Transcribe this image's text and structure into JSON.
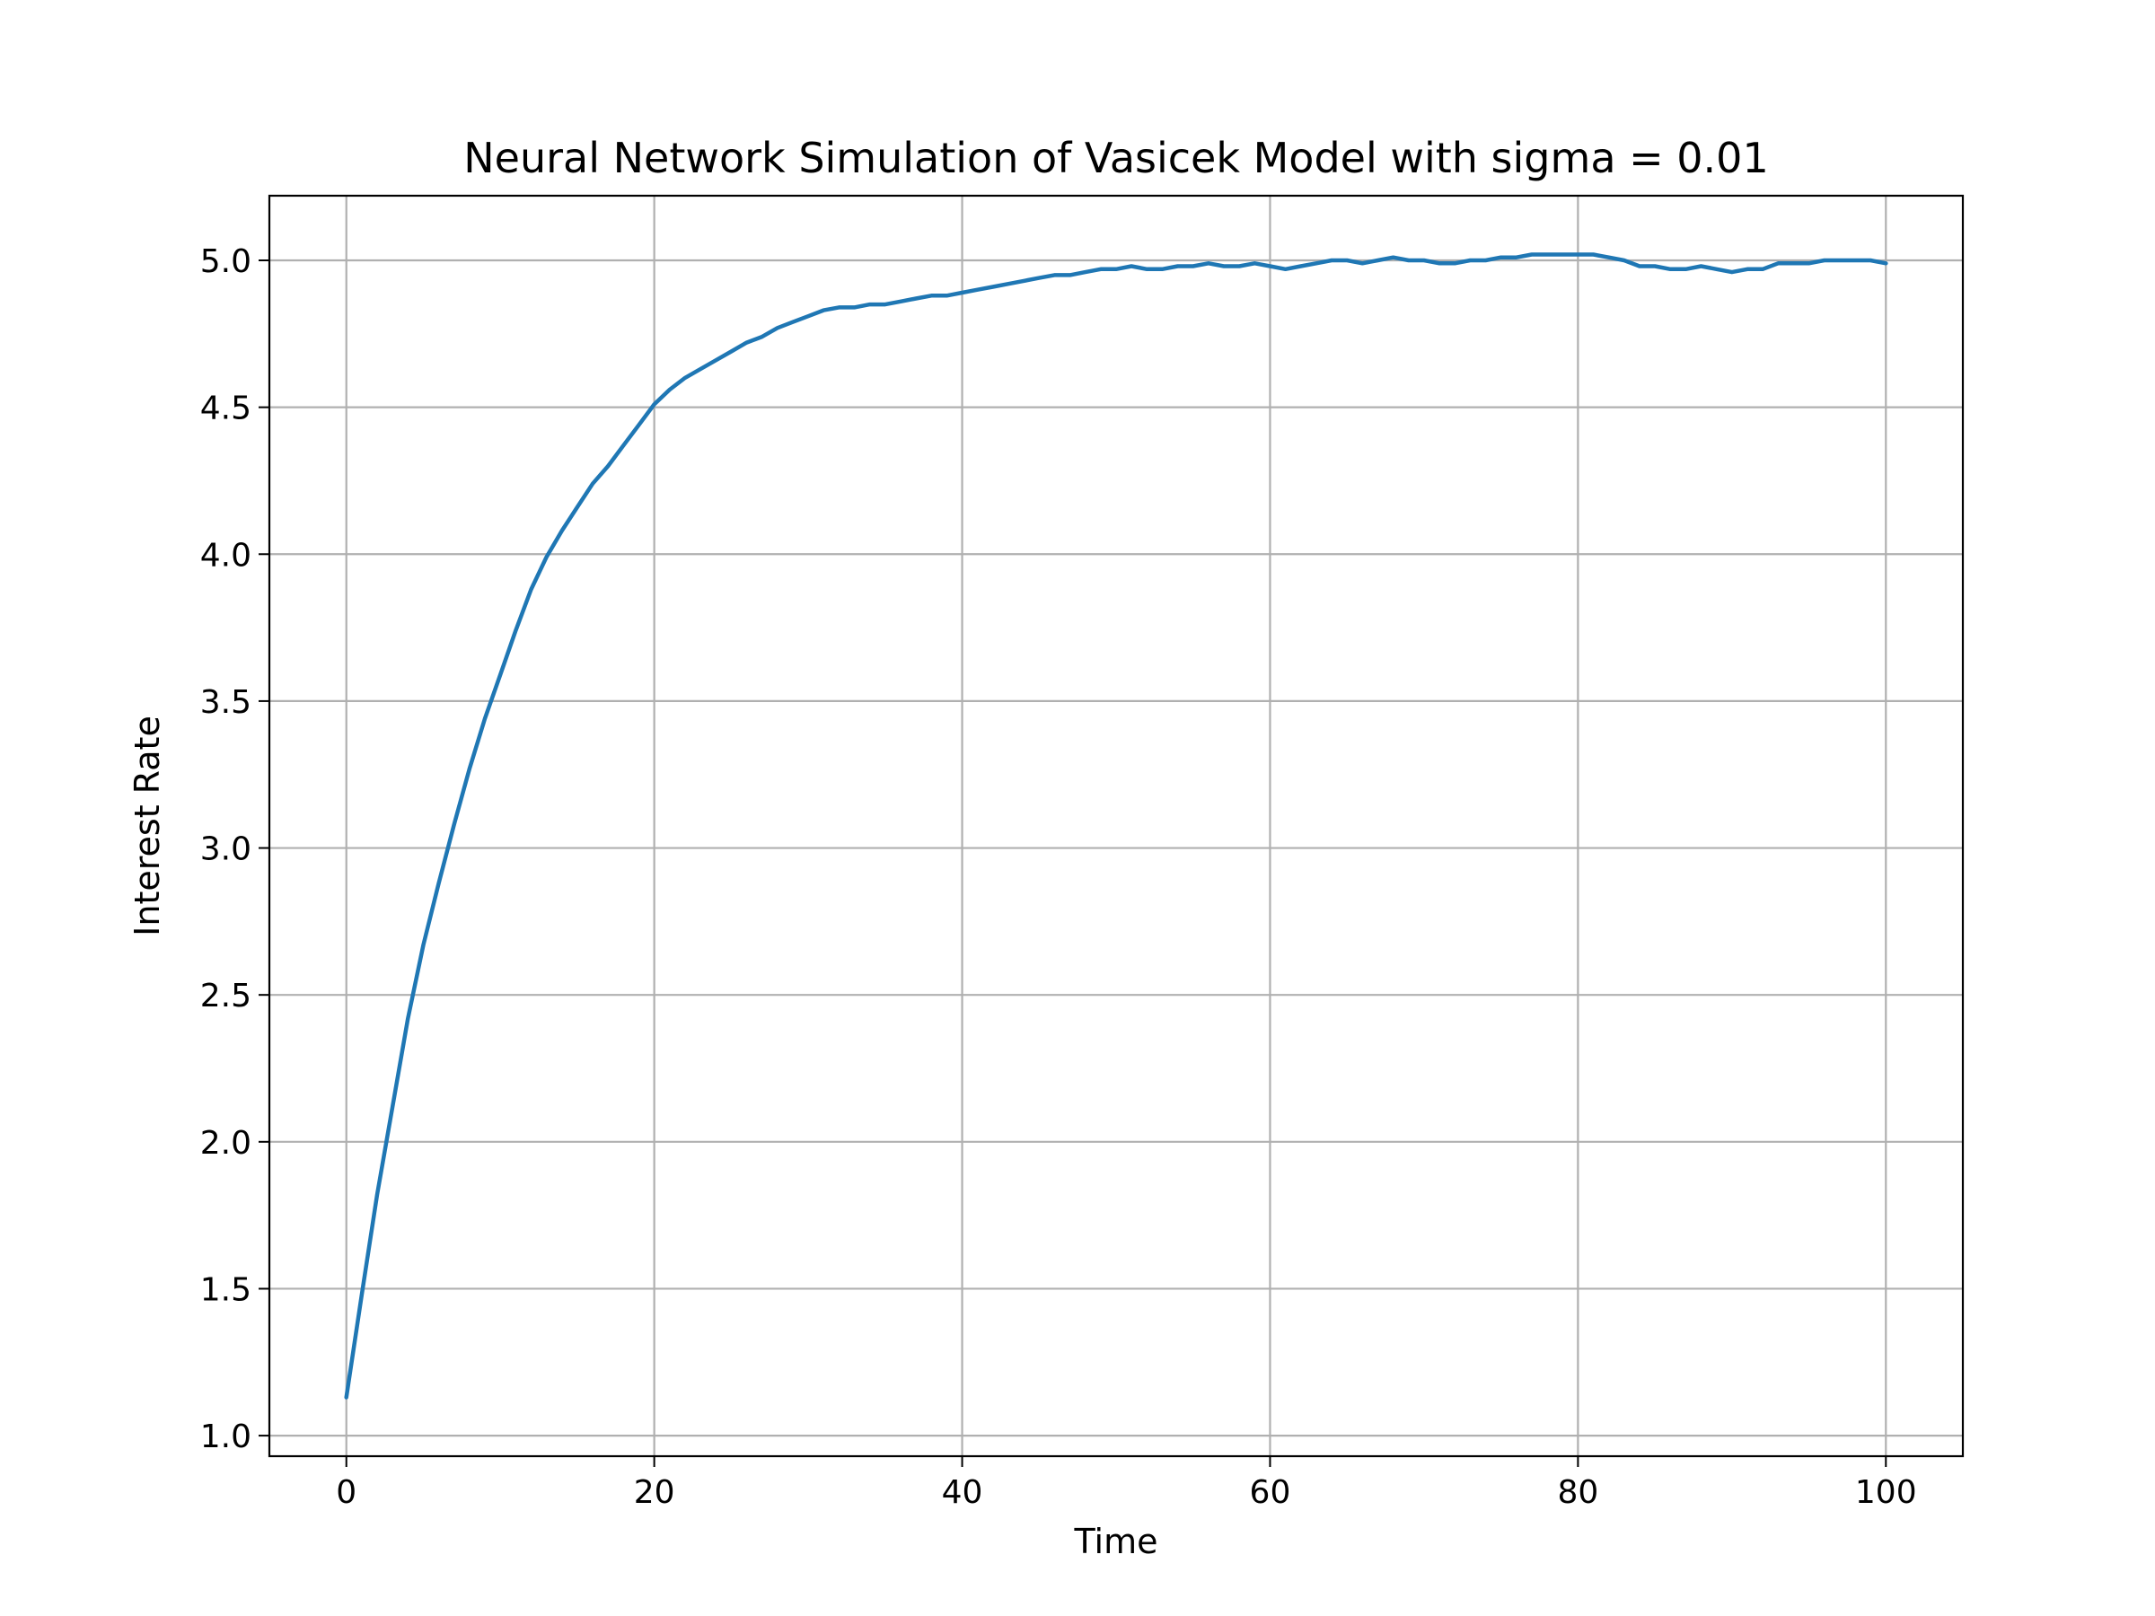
{
  "chart_data": {
    "type": "line",
    "title": "Neural Network Simulation of Vasicek Model with sigma = 0.01",
    "xlabel": "Time",
    "ylabel": "Interest Rate",
    "xlim": [
      -5,
      105
    ],
    "ylim": [
      0.93,
      5.22
    ],
    "xticks": [
      0,
      20,
      40,
      60,
      80,
      100
    ],
    "yticks": [
      1.0,
      1.5,
      2.0,
      2.5,
      3.0,
      3.5,
      4.0,
      4.5,
      5.0
    ],
    "grid": true,
    "legend": "none",
    "colors": {
      "line": "#1f77b4",
      "grid": "#b0b0b0",
      "frame": "#000000"
    },
    "series": [
      {
        "x": [
          0,
          1,
          2,
          3,
          4,
          5,
          6,
          7,
          8,
          9,
          10,
          11,
          12,
          13,
          14,
          15,
          16,
          17,
          18,
          19,
          20,
          21,
          22,
          23,
          24,
          25,
          26,
          27,
          28,
          29,
          30,
          31,
          32,
          33,
          34,
          35,
          36,
          37,
          38,
          39,
          40,
          41,
          42,
          43,
          44,
          45,
          46,
          47,
          48,
          49,
          50,
          51,
          52,
          53,
          54,
          55,
          56,
          57,
          58,
          59,
          60,
          61,
          62,
          63,
          64,
          65,
          66,
          67,
          68,
          69,
          70,
          71,
          72,
          73,
          74,
          75,
          76,
          77,
          78,
          79,
          80,
          81,
          82,
          83,
          84,
          85,
          86,
          87,
          88,
          89,
          90,
          91,
          92,
          93,
          94,
          95,
          96,
          97,
          98,
          99,
          100
        ],
        "values": [
          1.13,
          1.48,
          1.82,
          2.12,
          2.42,
          2.67,
          2.88,
          3.08,
          3.27,
          3.44,
          3.59,
          3.74,
          3.88,
          3.99,
          4.08,
          4.16,
          4.24,
          4.3,
          4.37,
          4.44,
          4.51,
          4.56,
          4.6,
          4.63,
          4.66,
          4.69,
          4.72,
          4.74,
          4.77,
          4.79,
          4.81,
          4.83,
          4.84,
          4.84,
          4.85,
          4.85,
          4.86,
          4.87,
          4.88,
          4.88,
          4.89,
          4.9,
          4.91,
          4.92,
          4.93,
          4.94,
          4.95,
          4.95,
          4.96,
          4.97,
          4.97,
          4.98,
          4.97,
          4.97,
          4.98,
          4.98,
          4.99,
          4.98,
          4.98,
          4.99,
          4.98,
          4.97,
          4.98,
          4.99,
          5.0,
          5.0,
          4.99,
          5.0,
          5.01,
          5.0,
          5.0,
          4.99,
          4.99,
          5.0,
          5.0,
          5.01,
          5.01,
          5.02,
          5.02,
          5.02,
          5.02,
          5.02,
          5.01,
          5.0,
          4.98,
          4.98,
          4.97,
          4.97,
          4.98,
          4.97,
          4.96,
          4.97,
          4.97,
          4.99,
          4.99,
          4.99,
          5.0,
          5.0,
          5.0,
          5.0,
          4.99
        ]
      }
    ]
  }
}
